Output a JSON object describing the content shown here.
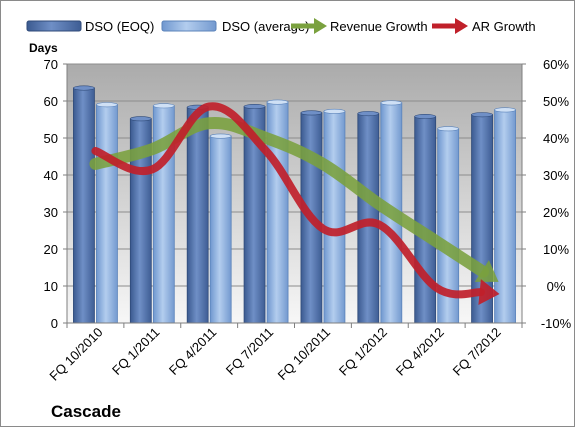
{
  "chart_data": {
    "type": "bar",
    "title": "Cascade",
    "ylabel_left": "Days",
    "categories": [
      "FQ 10/2010",
      "FQ 1/2011",
      "FQ 4/2011",
      "FQ 7/2011",
      "FQ 10/2011",
      "FQ 1/2012",
      "FQ 4/2012",
      "FQ 7/2012"
    ],
    "bar_series": [
      {
        "name": "DSO (EOQ)",
        "values": [
          63.5,
          55.2,
          58.3,
          58.5,
          56.8,
          56.6,
          55.8,
          56.3
        ],
        "color": "#4f6fa8"
      },
      {
        "name": "DSO (average)",
        "values": [
          59.0,
          58.7,
          50.5,
          59.7,
          57.2,
          59.5,
          52.5,
          57.6
        ],
        "color": "#8db0dc"
      }
    ],
    "line_series": [
      {
        "name": "Revenue Growth",
        "values": [
          33,
          37,
          44,
          40,
          33,
          22,
          12,
          2
        ],
        "color": "#7aa13e",
        "axis": "right"
      },
      {
        "name": "AR Growth",
        "values": [
          36.5,
          31.5,
          48.5,
          36.5,
          15.5,
          16.5,
          -0.5,
          -2
        ],
        "color": "#c0202a",
        "axis": "right"
      }
    ],
    "ylim_left": [
      0,
      70
    ],
    "yticks_left": [
      "0",
      "10",
      "20",
      "30",
      "40",
      "50",
      "60",
      "70"
    ],
    "ylim_right": [
      -10,
      60
    ],
    "yticks_right": [
      "-10%",
      "0%",
      "10%",
      "20%",
      "30%",
      "40%",
      "50%",
      "60%"
    ],
    "grid": true,
    "legend_position": "top"
  }
}
